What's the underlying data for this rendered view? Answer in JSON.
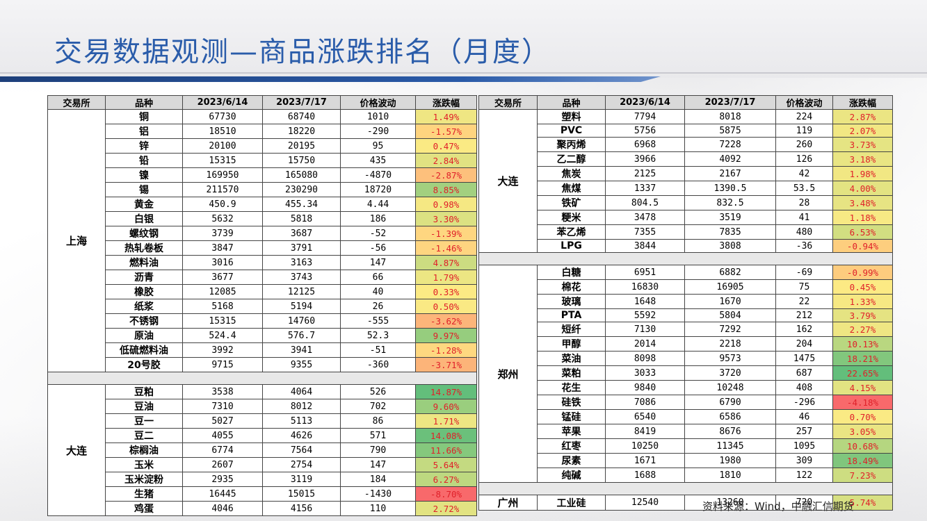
{
  "title": "交易数据观测—商品涨跌排名（月度）",
  "source": "资料来源：Wind，中融汇信期货",
  "headers": [
    "交易所",
    "品种",
    "2023/6/14",
    "2023/7/17",
    "价格波动",
    "涨跌幅"
  ],
  "left_groups": [
    {
      "exchange": "上海",
      "rows": [
        [
          "铜",
          "67730",
          "68740",
          "1010",
          "1.49%"
        ],
        [
          "铝",
          "18510",
          "18220",
          "-290",
          "-1.57%"
        ],
        [
          "锌",
          "20100",
          "20195",
          "95",
          "0.47%"
        ],
        [
          "铅",
          "15315",
          "15750",
          "435",
          "2.84%"
        ],
        [
          "镍",
          "169950",
          "165080",
          "-4870",
          "-2.87%"
        ],
        [
          "锡",
          "211570",
          "230290",
          "18720",
          "8.85%"
        ],
        [
          "黄金",
          "450.9",
          "455.34",
          "4.44",
          "0.98%"
        ],
        [
          "白银",
          "5632",
          "5818",
          "186",
          "3.30%"
        ],
        [
          "螺纹钢",
          "3739",
          "3687",
          "-52",
          "-1.39%"
        ],
        [
          "热轧卷板",
          "3847",
          "3791",
          "-56",
          "-1.46%"
        ],
        [
          "燃料油",
          "3016",
          "3163",
          "147",
          "4.87%"
        ],
        [
          "沥青",
          "3677",
          "3743",
          "66",
          "1.79%"
        ],
        [
          "橡胶",
          "12085",
          "12125",
          "40",
          "0.33%"
        ],
        [
          "纸浆",
          "5168",
          "5194",
          "26",
          "0.50%"
        ],
        [
          "不锈钢",
          "15315",
          "14760",
          "-555",
          "-3.62%"
        ],
        [
          "原油",
          "524.4",
          "576.7",
          "52.3",
          "9.97%"
        ],
        [
          "低硫燃料油",
          "3992",
          "3941",
          "-51",
          "-1.28%"
        ],
        [
          "20号胶",
          "9715",
          "9355",
          "-360",
          "-3.71%"
        ]
      ]
    },
    {
      "exchange": "大连",
      "rows": [
        [
          "豆粕",
          "3538",
          "4064",
          "526",
          "14.87%"
        ],
        [
          "豆油",
          "7310",
          "8012",
          "702",
          "9.60%"
        ],
        [
          "豆一",
          "5027",
          "5113",
          "86",
          "1.71%"
        ],
        [
          "豆二",
          "4055",
          "4626",
          "571",
          "14.08%"
        ],
        [
          "棕榈油",
          "6774",
          "7564",
          "790",
          "11.66%"
        ],
        [
          "玉米",
          "2607",
          "2754",
          "147",
          "5.64%"
        ],
        [
          "玉米淀粉",
          "2935",
          "3119",
          "184",
          "6.27%"
        ],
        [
          "生猪",
          "16445",
          "15015",
          "-1430",
          "-8.70%"
        ],
        [
          "鸡蛋",
          "4046",
          "4156",
          "110",
          "2.72%"
        ]
      ]
    }
  ],
  "right_groups": [
    {
      "exchange": "大连",
      "rows": [
        [
          "塑料",
          "7794",
          "8018",
          "224",
          "2.87%"
        ],
        [
          "PVC",
          "5756",
          "5875",
          "119",
          "2.07%"
        ],
        [
          "聚丙烯",
          "6968",
          "7228",
          "260",
          "3.73%"
        ],
        [
          "乙二醇",
          "3966",
          "4092",
          "126",
          "3.18%"
        ],
        [
          "焦炭",
          "2125",
          "2167",
          "42",
          "1.98%"
        ],
        [
          "焦煤",
          "1337",
          "1390.5",
          "53.5",
          "4.00%"
        ],
        [
          "铁矿",
          "804.5",
          "832.5",
          "28",
          "3.48%"
        ],
        [
          "粳米",
          "3478",
          "3519",
          "41",
          "1.18%"
        ],
        [
          "苯乙烯",
          "7355",
          "7835",
          "480",
          "6.53%"
        ],
        [
          "LPG",
          "3844",
          "3808",
          "-36",
          "-0.94%"
        ]
      ]
    },
    {
      "exchange": "郑州",
      "rows": [
        [
          "白糖",
          "6951",
          "6882",
          "-69",
          "-0.99%"
        ],
        [
          "棉花",
          "16830",
          "16905",
          "75",
          "0.45%"
        ],
        [
          "玻璃",
          "1648",
          "1670",
          "22",
          "1.33%"
        ],
        [
          "PTA",
          "5592",
          "5804",
          "212",
          "3.79%"
        ],
        [
          "短纤",
          "7130",
          "7292",
          "162",
          "2.27%"
        ],
        [
          "甲醇",
          "2014",
          "2218",
          "204",
          "10.13%"
        ],
        [
          "菜油",
          "8098",
          "9573",
          "1475",
          "18.21%"
        ],
        [
          "菜粕",
          "3033",
          "3720",
          "687",
          "22.65%"
        ],
        [
          "花生",
          "9840",
          "10248",
          "408",
          "4.15%"
        ],
        [
          "硅铁",
          "7086",
          "6790",
          "-296",
          "-4.18%"
        ],
        [
          "锰硅",
          "6540",
          "6586",
          "46",
          "0.70%"
        ],
        [
          "苹果",
          "8419",
          "8676",
          "257",
          "3.05%"
        ],
        [
          "红枣",
          "10250",
          "11345",
          "1095",
          "10.68%"
        ],
        [
          "尿素",
          "1671",
          "1980",
          "309",
          "18.49%"
        ],
        [
          "纯碱",
          "1688",
          "1810",
          "122",
          "7.23%"
        ]
      ]
    },
    {
      "exchange": "广州",
      "rows": [
        [
          "工业硅",
          "12540",
          "13260",
          "720",
          "5.74%"
        ]
      ]
    }
  ],
  "colors": {
    "title": "#2a5caa",
    "header_bg": "#d9d9d9",
    "pct_text": "#e0202a",
    "heat_red": "#f8696b",
    "heat_yellow": "#ffeb84",
    "heat_green": "#63be7b"
  }
}
